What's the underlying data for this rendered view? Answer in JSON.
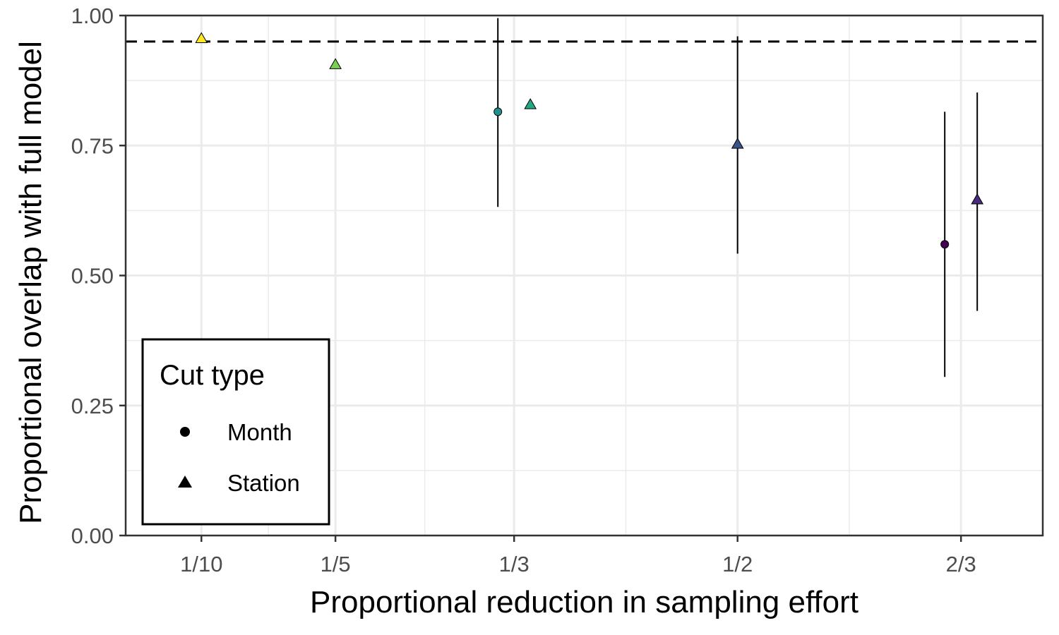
{
  "chart_data": {
    "type": "scatter",
    "xlabel": "Proportional reduction in sampling effort",
    "ylabel": "Proportional overlap with full model",
    "x_tick_labels": [
      "1/10",
      "1/5",
      "1/3",
      "1/2",
      "2/3"
    ],
    "x_tick_values": [
      0.1,
      0.2,
      0.3333,
      0.5,
      0.6667
    ],
    "xlim": [
      0.0435,
      0.7277
    ],
    "y_tick_labels": [
      "0.00",
      "0.25",
      "0.50",
      "0.75",
      "1.00"
    ],
    "y_tick_values": [
      0,
      0.25,
      0.5,
      0.75,
      1.0
    ],
    "ylim": [
      0,
      1.0
    ],
    "reference_line": {
      "y": 0.95,
      "style": "dashed",
      "color": "#000000"
    },
    "grid": true,
    "legend": {
      "title": "Cut type",
      "position": "bottom-left",
      "items": [
        {
          "label": "Month",
          "shape": "circle"
        },
        {
          "label": "Station",
          "shape": "triangle"
        }
      ]
    },
    "series": [
      {
        "name": "Month",
        "shape": "circle",
        "points": [
          {
            "x": 0.3333,
            "y": 0.815,
            "ymin": 0.632,
            "ymax": 0.995,
            "color": "#21908C"
          },
          {
            "x": 0.6667,
            "y": 0.56,
            "ymin": 0.305,
            "ymax": 0.815,
            "color": "#440154"
          }
        ]
      },
      {
        "name": "Station",
        "shape": "triangle",
        "points": [
          {
            "x": 0.1,
            "y": 0.955,
            "color": "#FDE725"
          },
          {
            "x": 0.2,
            "y": 0.905,
            "color": "#7AD151"
          },
          {
            "x": 0.3333,
            "y": 0.828,
            "color": "#22A884"
          },
          {
            "x": 0.5,
            "y": 0.752,
            "ymin": 0.542,
            "ymax": 0.96,
            "color": "#3B528B"
          },
          {
            "x": 0.6667,
            "y": 0.645,
            "ymin": 0.432,
            "ymax": 0.852,
            "color": "#472D7B"
          }
        ]
      }
    ]
  }
}
